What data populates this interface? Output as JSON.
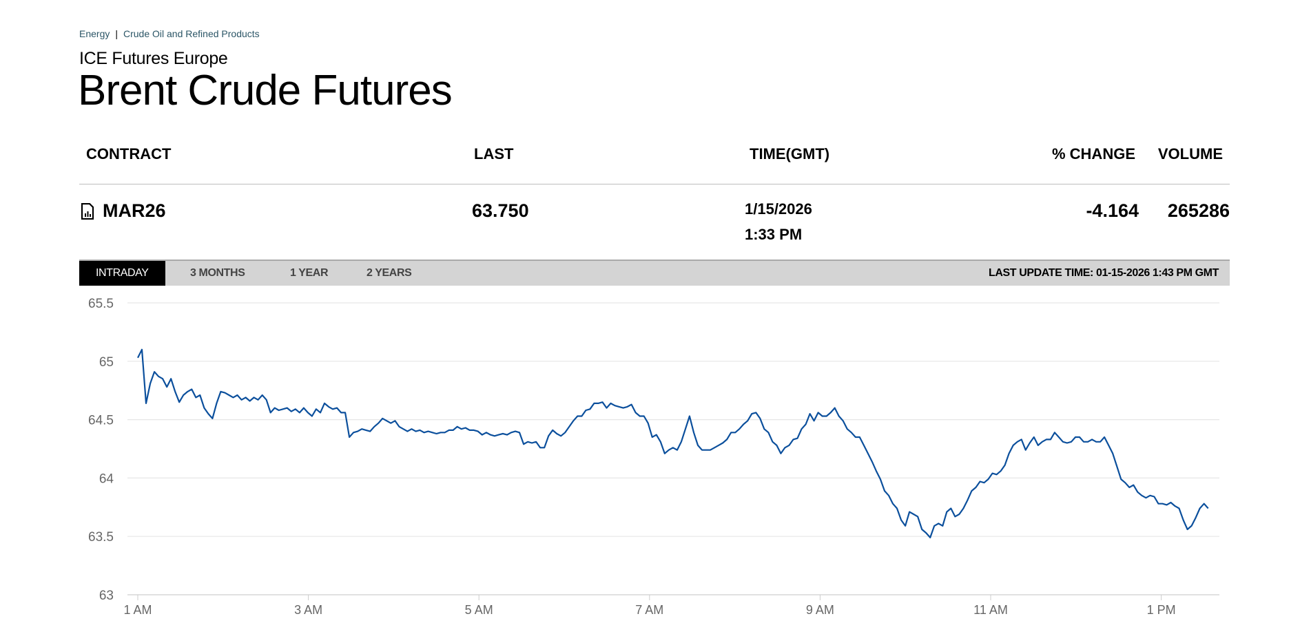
{
  "breadcrumb": [
    "Energy",
    "Crude Oil and Refined Products"
  ],
  "exchange": "ICE Futures Europe",
  "title": "Brent Crude Futures",
  "table": {
    "headers": {
      "contract": "CONTRACT",
      "last": "LAST",
      "time": "TIME(GMT)",
      "change": "% CHANGE",
      "volume": "VOLUME"
    },
    "row": {
      "contract": "MAR26",
      "last": "63.750",
      "date": "1/15/2026",
      "time": "1:33 PM",
      "change": "-4.164",
      "volume": "265286"
    }
  },
  "tabs": [
    "INTRADAY",
    "3 MONTHS",
    "1 YEAR",
    "2 YEARS"
  ],
  "active_tab": "INTRADAY",
  "last_update": "LAST UPDATE TIME: 01-15-2026 1:43 PM GMT",
  "colors": {
    "line": "#0b4f9c",
    "grid": "#e6e6e6",
    "tab_active": "#000000",
    "tab_bar": "#d4d4d4"
  },
  "chart_data": {
    "type": "line",
    "title": "",
    "xlabel": "",
    "ylabel": "",
    "ylim": [
      63,
      65.5
    ],
    "yticks": [
      63,
      63.5,
      64,
      64.5,
      65,
      65.5
    ],
    "ytick_labels": [
      "63",
      "63.5",
      "64",
      "64.5",
      "65",
      "65.5"
    ],
    "xticks_hours": [
      1,
      3,
      5,
      7,
      9,
      11,
      13
    ],
    "xtick_labels": [
      "1 AM",
      "3 AM",
      "5 AM",
      "7 AM",
      "9 AM",
      "11 AM",
      "1 PM"
    ],
    "x_start_hour": 1.0,
    "x_end_hour": 13.55,
    "grid": true,
    "series": [
      {
        "name": "MAR26",
        "values": [
          65.03,
          65.1,
          64.64,
          64.81,
          64.91,
          64.87,
          64.85,
          64.78,
          64.85,
          64.74,
          64.65,
          64.71,
          64.74,
          64.76,
          64.69,
          64.71,
          64.6,
          64.55,
          64.51,
          64.64,
          64.74,
          64.73,
          64.71,
          64.69,
          64.71,
          64.67,
          64.69,
          64.66,
          64.69,
          64.67,
          64.71,
          64.67,
          64.56,
          64.6,
          64.58,
          64.59,
          64.6,
          64.57,
          64.59,
          64.56,
          64.6,
          64.56,
          64.53,
          64.59,
          64.56,
          64.64,
          64.61,
          64.59,
          64.6,
          64.56,
          64.56,
          64.35,
          64.39,
          64.4,
          64.42,
          64.41,
          64.4,
          64.44,
          64.47,
          64.51,
          64.49,
          64.47,
          64.49,
          64.44,
          64.42,
          64.4,
          64.42,
          64.4,
          64.41,
          64.39,
          64.4,
          64.39,
          64.38,
          64.39,
          64.39,
          64.41,
          64.41,
          64.44,
          64.42,
          64.43,
          64.41,
          64.41,
          64.4,
          64.37,
          64.39,
          64.37,
          64.36,
          64.37,
          64.38,
          64.37,
          64.39,
          64.4,
          64.39,
          64.29,
          64.31,
          64.3,
          64.31,
          64.26,
          64.26,
          64.36,
          64.41,
          64.38,
          64.36,
          64.39,
          64.44,
          64.49,
          64.53,
          64.53,
          64.58,
          64.59,
          64.64,
          64.64,
          64.65,
          64.6,
          64.64,
          64.62,
          64.61,
          64.6,
          64.61,
          64.63,
          64.56,
          64.53,
          64.53,
          64.47,
          64.35,
          64.37,
          64.31,
          64.21,
          64.24,
          64.26,
          64.24,
          64.31,
          64.42,
          64.53,
          64.39,
          64.28,
          64.24,
          64.24,
          64.24,
          64.26,
          64.28,
          64.3,
          64.33,
          64.39,
          64.39,
          64.42,
          64.46,
          64.49,
          64.55,
          64.56,
          64.51,
          64.42,
          64.39,
          64.31,
          64.28,
          64.21,
          64.26,
          64.28,
          64.33,
          64.34,
          64.42,
          64.46,
          64.55,
          64.49,
          64.56,
          64.53,
          64.53,
          64.56,
          64.6,
          64.53,
          64.49,
          64.42,
          64.39,
          64.35,
          64.35,
          64.28,
          64.21,
          64.14,
          64.06,
          63.99,
          63.89,
          63.85,
          63.78,
          63.74,
          63.64,
          63.59,
          63.71,
          63.69,
          63.67,
          63.56,
          63.53,
          63.49,
          63.59,
          63.61,
          63.59,
          63.71,
          63.74,
          63.67,
          63.69,
          63.74,
          63.81,
          63.89,
          63.92,
          63.97,
          63.96,
          63.99,
          64.04,
          64.03,
          64.06,
          64.11,
          64.21,
          64.28,
          64.31,
          64.33,
          64.24,
          64.3,
          64.35,
          64.28,
          64.31,
          64.33,
          64.33,
          64.39,
          64.35,
          64.31,
          64.3,
          64.31,
          64.35,
          64.35,
          64.31,
          64.31,
          64.33,
          64.31,
          64.31,
          64.35,
          64.28,
          64.21,
          64.1,
          63.99,
          63.96,
          63.92,
          63.94,
          63.88,
          63.85,
          63.83,
          63.85,
          63.84,
          63.78,
          63.78,
          63.77,
          63.79,
          63.76,
          63.74,
          63.64,
          63.56,
          63.59,
          63.66,
          63.74,
          63.78,
          63.74
        ]
      }
    ]
  }
}
